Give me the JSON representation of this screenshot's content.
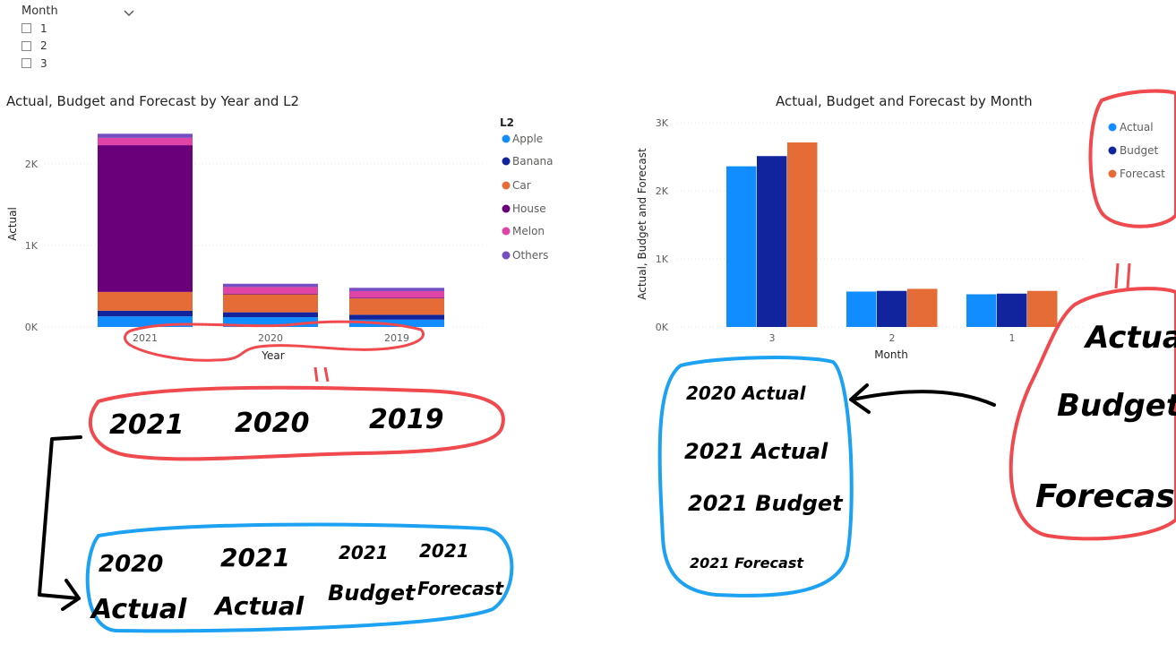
{
  "slicer": {
    "title": "Month",
    "options": [
      "1",
      "2",
      "3"
    ]
  },
  "colors": {
    "Apple": "#118DFF",
    "Banana": "#12239E",
    "Car": "#E66C37",
    "House": "#6B007B",
    "Melon": "#E044A7",
    "Others": "#744EC2",
    "Actual": "#118DFF",
    "Budget": "#12239E",
    "Forecast": "#E66C37",
    "red_ink": "#F0494E",
    "blue_ink": "#1DA1F2"
  },
  "chart_data": [
    {
      "type": "bar",
      "stacked": true,
      "title": "Actual, Budget and Forecast by Year and L2",
      "xlabel": "Year",
      "ylabel": "Actual",
      "categories": [
        "2021",
        "2020",
        "2019"
      ],
      "ylim": [
        0,
        2500
      ],
      "yticks": [
        "0K",
        "1K",
        "2K"
      ],
      "legend_title": "L2",
      "legend_position": "right",
      "series": [
        {
          "name": "Apple",
          "values": [
            130,
            120,
            90
          ]
        },
        {
          "name": "Banana",
          "values": [
            70,
            60,
            60
          ]
        },
        {
          "name": "Car",
          "values": [
            230,
            220,
            200
          ]
        },
        {
          "name": "House",
          "values": [
            1800,
            10,
            10
          ]
        },
        {
          "name": "Melon",
          "values": [
            90,
            80,
            80
          ]
        },
        {
          "name": "Others",
          "values": [
            50,
            40,
            40
          ]
        }
      ]
    },
    {
      "type": "bar",
      "stacked": false,
      "title": "Actual, Budget and Forecast by Month",
      "xlabel": "Month",
      "ylabel": "Actual, Budget and Forecast",
      "categories": [
        "3",
        "2",
        "1"
      ],
      "ylim": [
        0,
        3000
      ],
      "yticks": [
        "0K",
        "1K",
        "2K",
        "3K"
      ],
      "legend_position": "top-right",
      "series": [
        {
          "name": "Actual",
          "values": [
            2360,
            520,
            480
          ]
        },
        {
          "name": "Budget",
          "values": [
            2510,
            530,
            490
          ]
        },
        {
          "name": "Forecast",
          "values": [
            2710,
            560,
            530
          ]
        }
      ]
    }
  ],
  "annotations": {
    "years": [
      "2021",
      "2020",
      "2019"
    ],
    "year_targets": [
      {
        "year": "2020",
        "label": "Actual"
      },
      {
        "year": "2021",
        "label": "Actual"
      },
      {
        "year": "2021",
        "label": "Budget"
      },
      {
        "year": "2021",
        "label": "Forecast"
      }
    ],
    "measures": [
      "Actual",
      "Budget",
      "Forecast"
    ],
    "month_targets": [
      {
        "year": "2020",
        "label": "Actual"
      },
      {
        "year": "2021",
        "label": "Actual"
      },
      {
        "year": "2021",
        "label": "Budget"
      },
      {
        "year": "2021",
        "label": "Forecast"
      }
    ]
  }
}
